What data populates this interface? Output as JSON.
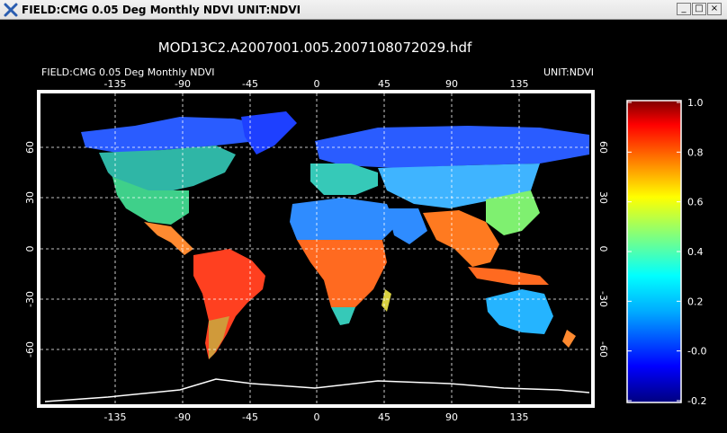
{
  "window": {
    "title": "FIELD:CMG 0.05 Deg Monthly NDVI  UNIT:NDVI",
    "minimize_glyph": "_",
    "maximize_glyph": "□",
    "close_glyph": "×"
  },
  "figure": {
    "file_title": "MOD13C2.A2007001.005.2007108072029.hdf",
    "field_label": "FIELD:CMG 0.05 Deg Monthly NDVI",
    "unit_label": "UNIT:NDVI",
    "lon_ticks": [
      "-135",
      "-90",
      "-45",
      "0",
      "45",
      "90",
      "135"
    ],
    "lat_ticks": [
      "60",
      "30",
      "0",
      "-30",
      "-60"
    ],
    "colorbar_ticks": [
      "1.0",
      "0.8",
      "0.6",
      "0.4",
      "0.2",
      "-0.0",
      "-0.2"
    ],
    "background_color": "#000000",
    "grid_color": "#ffffff"
  },
  "chart_data": {
    "type": "heatmap",
    "title": "MOD13C2.A2007001.005.2007108072029.hdf",
    "field": "CMG 0.05 Deg Monthly NDVI",
    "unit": "NDVI",
    "x_ticks": [
      -135,
      -90,
      -45,
      0,
      45,
      90,
      135
    ],
    "y_ticks": [
      60,
      30,
      0,
      -30,
      -60
    ],
    "xlim": [
      -180,
      180
    ],
    "ylim": [
      -90,
      90
    ],
    "colorbar": {
      "min": -0.2,
      "max": 1.0,
      "ticks": [
        1.0,
        0.8,
        0.6,
        0.4,
        0.2,
        -0.0,
        -0.2
      ]
    },
    "grid": true,
    "colormap": [
      "#00007f",
      "#0000ff",
      "#00aaff",
      "#00ffff",
      "#7fff7f",
      "#ffff00",
      "#ff7f00",
      "#ff0000",
      "#7f0000"
    ]
  }
}
